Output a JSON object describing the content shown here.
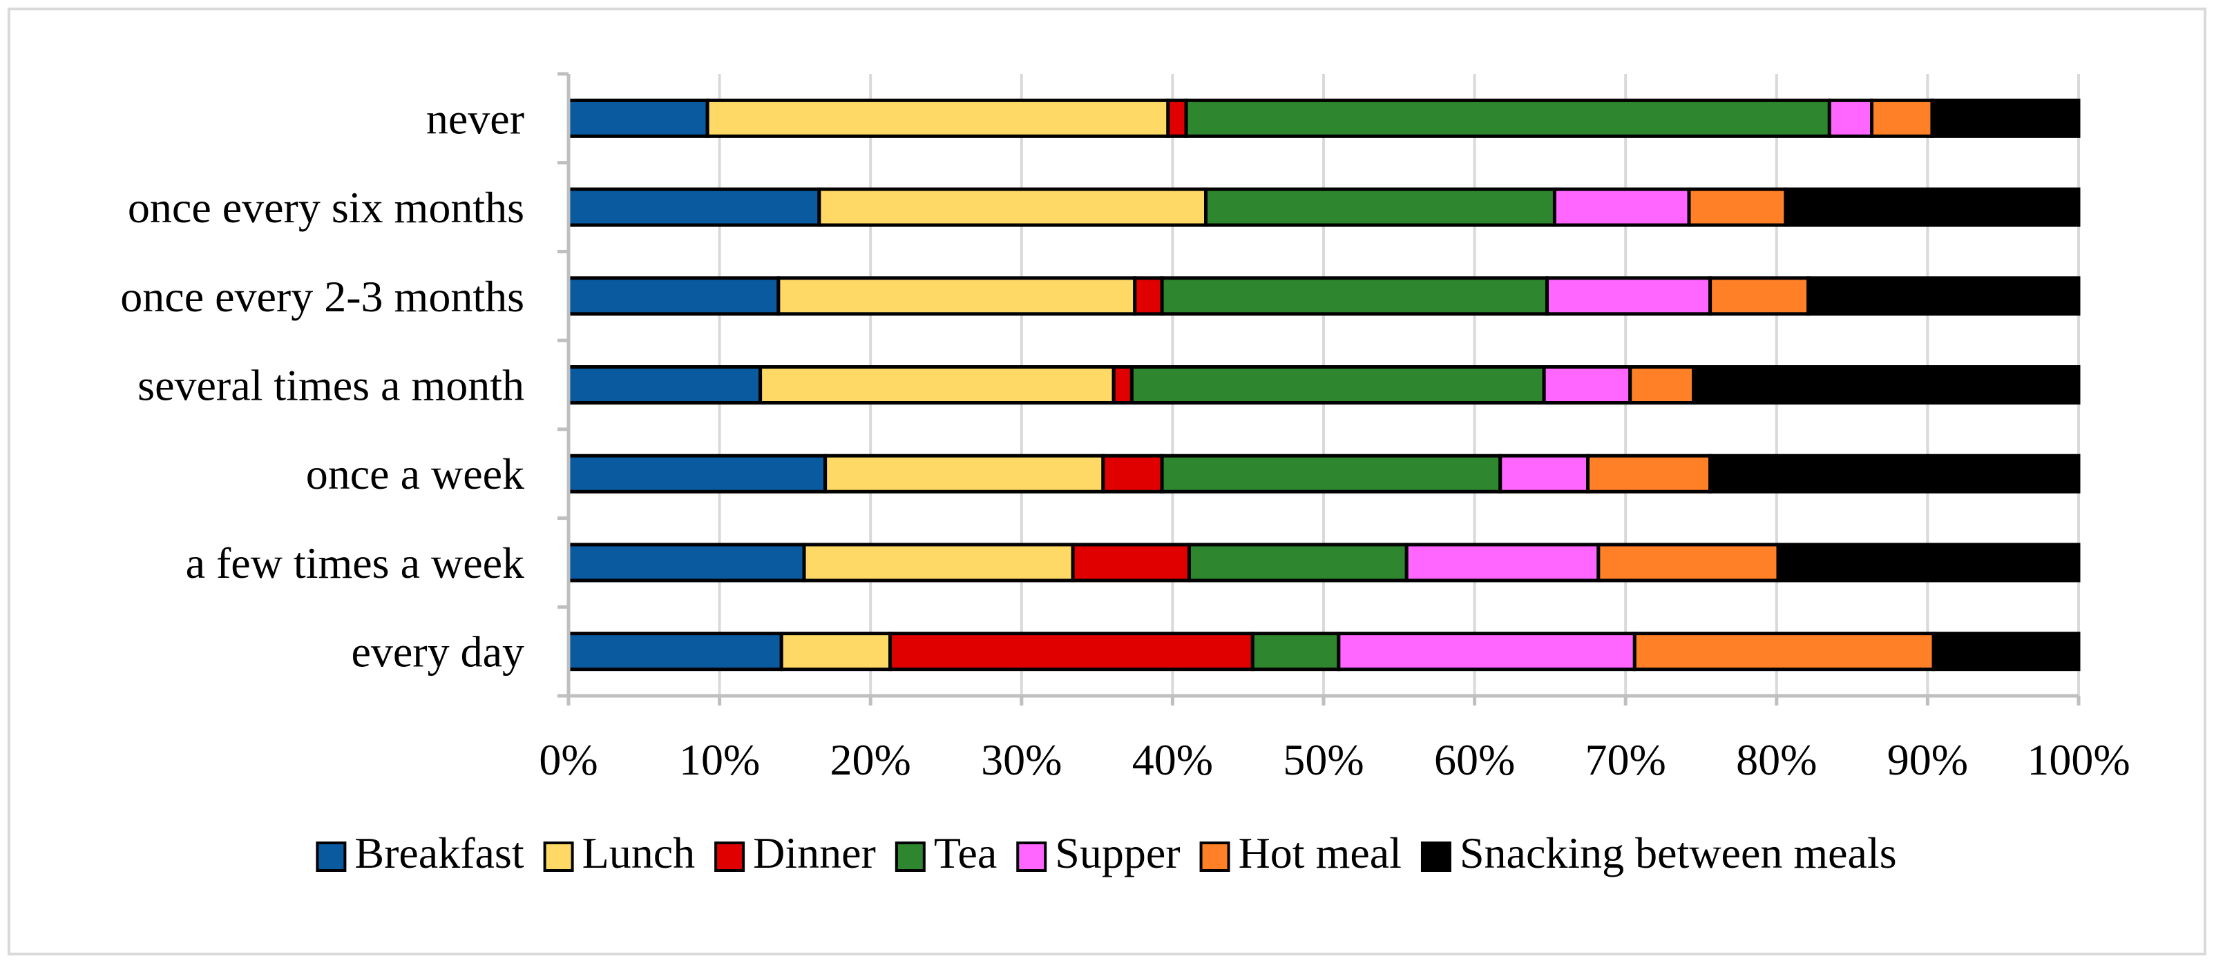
{
  "chart_data": {
    "type": "bar",
    "orientation": "horizontal",
    "stacked": "percent",
    "title": "",
    "xlabel": "",
    "ylabel": "",
    "xlim": [
      0,
      100
    ],
    "grid": true,
    "legend_position": "bottom",
    "categories": [
      "never",
      "once every six months",
      "once every 2-3 months",
      "several times a month",
      "once a week",
      "a few times a week",
      "every day"
    ],
    "x_ticks": [
      "0%",
      "10%",
      "20%",
      "30%",
      "40%",
      "50%",
      "60%",
      "70%",
      "80%",
      "90%",
      "100%"
    ],
    "series": [
      {
        "name": "Breakfast",
        "color": "#0a5aa0",
        "values": [
          9.2,
          16.6,
          13.9,
          12.7,
          17.0,
          15.6,
          14.1
        ]
      },
      {
        "name": "Lunch",
        "color": "#ffd966",
        "values": [
          30.5,
          25.6,
          23.6,
          23.4,
          18.4,
          17.8,
          7.2
        ]
      },
      {
        "name": "Dinner",
        "color": "#e00000",
        "values": [
          1.2,
          0.0,
          1.8,
          1.2,
          3.9,
          7.7,
          24.0
        ]
      },
      {
        "name": "Tea",
        "color": "#2e862e",
        "values": [
          42.6,
          23.1,
          25.5,
          27.3,
          22.4,
          14.4,
          5.7
        ]
      },
      {
        "name": "Supper",
        "color": "#ff66ff",
        "values": [
          2.8,
          8.9,
          10.8,
          5.7,
          5.8,
          12.7,
          19.6
        ]
      },
      {
        "name": "Hot meal",
        "color": "#ff8026",
        "values": [
          4.0,
          6.4,
          6.5,
          4.2,
          8.1,
          11.9,
          19.8
        ]
      },
      {
        "name": "Snacking between meals",
        "color": "#000000",
        "values": [
          9.7,
          19.4,
          17.9,
          25.5,
          24.4,
          19.9,
          9.6
        ]
      }
    ]
  }
}
